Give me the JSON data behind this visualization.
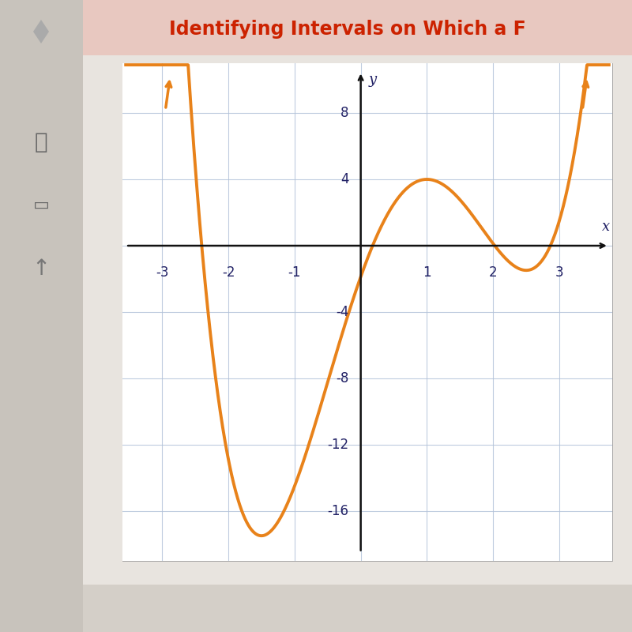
{
  "title": "Identifying Intervals on Which a F",
  "title_color": "#cc2200",
  "title_fontsize": 17,
  "curve_color": "#e8821a",
  "curve_linewidth": 2.8,
  "a4": 0.75,
  "a3": -2.0,
  "a2": -4.125,
  "a1": 11.25,
  "a0": -1.875,
  "xlim": [
    -3.6,
    3.8
  ],
  "ylim": [
    -19,
    11
  ],
  "x_axis_y": 0,
  "y_axis_x": 0,
  "xticks": [
    -3,
    -2,
    -1,
    1,
    2,
    3
  ],
  "yticks": [
    -16,
    -12,
    -8,
    -4,
    4,
    8
  ],
  "grid_color": "#b0c0d8",
  "grid_alpha": 0.8,
  "outer_bg": "#d4cfc8",
  "plot_bg": "#e8e4df",
  "chart_bg": "#ffffff",
  "axis_color": "#111111",
  "tick_label_color": "#222266",
  "tick_fontsize": 12,
  "axis_label_fontsize": 13
}
